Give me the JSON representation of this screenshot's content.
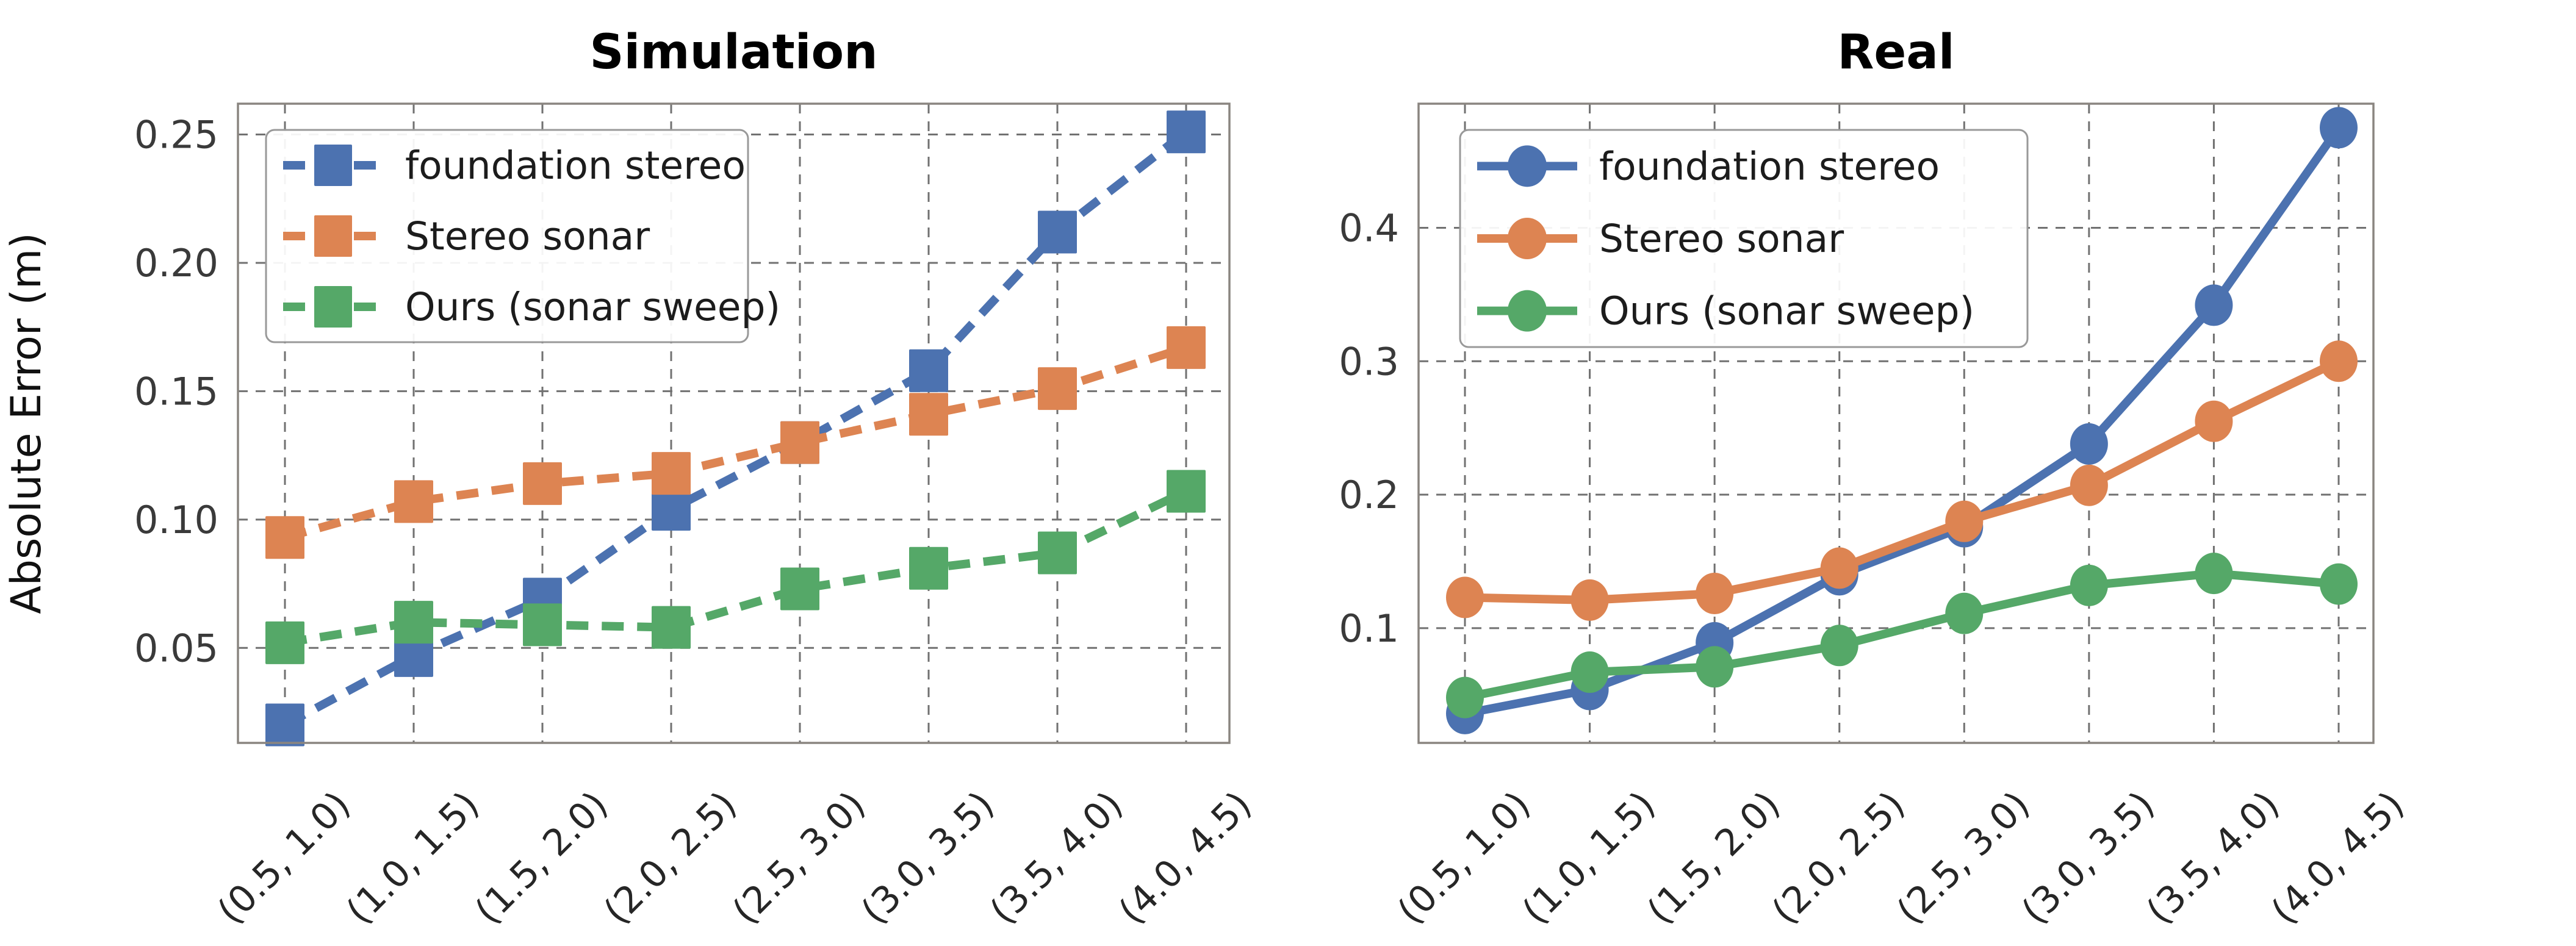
{
  "figure": {
    "background": "#ffffff",
    "text_color": "#000000",
    "tick_label_color": "#3a3a3a",
    "grid_color": "#595959",
    "spine_color": "#8a8580",
    "legend_border_color": "#999999"
  },
  "chart_data": [
    {
      "type": "line",
      "title": "Simulation",
      "xlabel": "",
      "ylabel": "Absolute Error (m)",
      "categories": [
        "(0.5, 1.0)",
        "(1.0, 1.5)",
        "(1.5, 2.0)",
        "(2.0, 2.5)",
        "(2.5, 3.0)",
        "(3.0, 3.5)",
        "(3.5, 4.0)",
        "(4.0, 4.5)"
      ],
      "ylim": [
        0.013,
        0.262
      ],
      "ytick_values": [
        0.05,
        0.1,
        0.15,
        0.2,
        0.25
      ],
      "ytick_labels": [
        "0.05",
        "0.10",
        "0.15",
        "0.20",
        "0.25"
      ],
      "grid": true,
      "grid_style": "dashed",
      "legend_position": "upper left",
      "line_style": "dashed",
      "marker": "square",
      "series": [
        {
          "name": "foundation stereo",
          "color": "#4C72B0",
          "values": [
            0.02,
            0.047,
            0.069,
            0.104,
            0.13,
            0.158,
            0.212,
            0.251
          ]
        },
        {
          "name": "Stereo sonar",
          "color": "#DD8452",
          "values": [
            0.093,
            0.107,
            0.114,
            0.118,
            0.13,
            0.141,
            0.151,
            0.167
          ]
        },
        {
          "name": "Ours (sonar sweep)",
          "color": "#55A868",
          "values": [
            0.052,
            0.06,
            0.059,
            0.058,
            0.073,
            0.081,
            0.087,
            0.111
          ]
        }
      ]
    },
    {
      "type": "line",
      "title": "Real",
      "xlabel": "",
      "ylabel": "",
      "categories": [
        "(0.5, 1.0)",
        "(1.0, 1.5)",
        "(1.5, 2.0)",
        "(2.0, 2.5)",
        "(2.5, 3.0)",
        "(3.0, 3.5)",
        "(3.5, 4.0)",
        "(4.0, 4.5)"
      ],
      "ylim": [
        0.014,
        0.493
      ],
      "ytick_values": [
        0.1,
        0.2,
        0.3,
        0.4
      ],
      "ytick_labels": [
        "0.1",
        "0.2",
        "0.3",
        "0.4"
      ],
      "grid": true,
      "grid_style": "dashed",
      "legend_position": "upper left",
      "line_style": "solid",
      "marker": "circle",
      "series": [
        {
          "name": "foundation stereo",
          "color": "#4C72B0",
          "values": [
            0.036,
            0.054,
            0.089,
            0.14,
            0.176,
            0.238,
            0.342,
            0.475
          ]
        },
        {
          "name": "Stereo sonar",
          "color": "#DD8452",
          "values": [
            0.123,
            0.121,
            0.126,
            0.145,
            0.18,
            0.207,
            0.255,
            0.3
          ]
        },
        {
          "name": "Ours (sonar sweep)",
          "color": "#55A868",
          "values": [
            0.048,
            0.067,
            0.071,
            0.087,
            0.111,
            0.132,
            0.141,
            0.133
          ]
        }
      ]
    }
  ]
}
